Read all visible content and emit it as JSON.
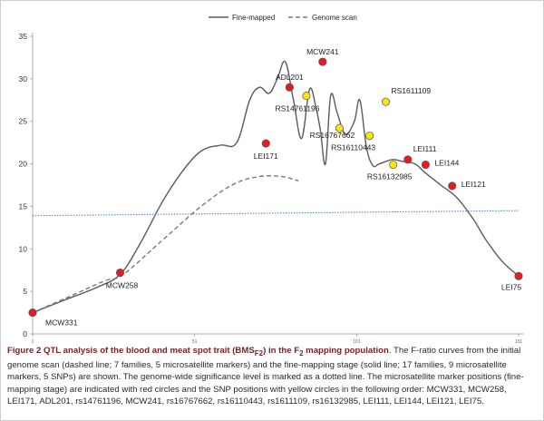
{
  "chart_data": {
    "type": "line",
    "title": "",
    "xlabel": "",
    "ylabel": "",
    "ylim": [
      0,
      35
    ],
    "yticks": [
      0,
      5,
      10,
      15,
      20,
      25,
      30,
      35
    ],
    "xlim": [
      0,
      150
    ],
    "xticks": [
      {
        "value": 0,
        "label": "1"
      },
      {
        "value": 50,
        "label": "51"
      },
      {
        "value": 100,
        "label": "101"
      },
      {
        "value": 150,
        "label": "151"
      }
    ],
    "legend": {
      "placement": "top-center",
      "entries": [
        "Fine-mapped",
        "Genome scan"
      ]
    },
    "series": [
      {
        "name": "Fine-mapped",
        "style": "solid",
        "color": "#5b5b5b",
        "x": [
          0,
          10,
          20,
          27,
          33,
          40,
          46,
          52,
          58,
          63,
          67,
          70,
          73,
          75.5,
          78,
          80.5,
          83,
          85.5,
          87.5,
          88.8,
          90.4,
          92,
          94,
          96.5,
          99.3,
          101,
          103,
          105,
          107,
          111,
          114,
          118,
          121,
          126,
          131,
          136,
          140,
          145,
          150
        ],
        "y": [
          2.5,
          4.0,
          5.5,
          7.0,
          10.5,
          15.5,
          19.0,
          21.5,
          22.2,
          22.5,
          27.5,
          29.0,
          28.3,
          30.0,
          32.0,
          27.5,
          23.0,
          28.8,
          26.5,
          24.0,
          20.0,
          28.0,
          26.0,
          23.5,
          25.0,
          27.5,
          22.0,
          19.8,
          20.0,
          20.5,
          20.3,
          20.0,
          19.0,
          17.5,
          16.0,
          13.5,
          11.0,
          8.5,
          6.8
        ]
      },
      {
        "name": "Genome scan",
        "style": "dashed",
        "color": "#7a7a7a",
        "x": [
          0,
          12,
          22,
          28,
          40,
          52,
          62,
          70,
          77,
          82
        ],
        "y": [
          2.5,
          4.5,
          6.2,
          7.0,
          11.0,
          15.0,
          17.6,
          18.5,
          18.5,
          18.0
        ]
      },
      {
        "name": "Significance level",
        "style": "dotted",
        "color": "#5b86c8",
        "x": [
          0,
          150
        ],
        "y": [
          13.9,
          14.5
        ]
      }
    ],
    "markers": [
      {
        "label": "MCW331",
        "x": 0,
        "y": 2.5,
        "kind": "microsatellite",
        "color": "#e31b23",
        "label_pos": "below-right"
      },
      {
        "label": "MCW258",
        "x": 27,
        "y": 7.2,
        "kind": "microsatellite",
        "color": "#e31b23",
        "label_pos": "below"
      },
      {
        "label": "LEI171",
        "x": 72,
        "y": 22.4,
        "kind": "microsatellite",
        "color": "#e31b23",
        "label_pos": "below"
      },
      {
        "label": "ADL201",
        "x": 79.3,
        "y": 29.0,
        "kind": "microsatellite",
        "color": "#e31b23",
        "label_pos": "above"
      },
      {
        "label": "RS14761196",
        "x": 84.5,
        "y": 28.0,
        "kind": "SNP",
        "color": "#f7e31b",
        "label_pos": "below"
      },
      {
        "label": "MCW241",
        "x": 89.5,
        "y": 32.0,
        "kind": "microsatellite",
        "color": "#e31b23",
        "label_pos": "above"
      },
      {
        "label": "RS16767662",
        "x": 94.7,
        "y": 24.2,
        "kind": "SNP",
        "color": "#f7e31b",
        "label_pos": "below"
      },
      {
        "label": "RS16110443",
        "x": 104,
        "y": 23.3,
        "kind": "SNP",
        "color": "#f7e31b",
        "label_pos": "below"
      },
      {
        "label": "RS1611109",
        "x": 109,
        "y": 27.3,
        "kind": "SNP",
        "color": "#f7e31b",
        "label_pos": "above-right"
      },
      {
        "label": "RS16132985",
        "x": 111.3,
        "y": 19.9,
        "kind": "SNP",
        "color": "#f7e31b",
        "label_pos": "below"
      },
      {
        "label": "LEI111",
        "x": 115.8,
        "y": 20.5,
        "kind": "microsatellite",
        "color": "#e31b23",
        "label_pos": "above-right"
      },
      {
        "label": "LEI144",
        "x": 121.3,
        "y": 19.9,
        "kind": "microsatellite",
        "color": "#e31b23",
        "label_pos": "right"
      },
      {
        "label": "LEI121",
        "x": 129.5,
        "y": 17.4,
        "kind": "microsatellite",
        "color": "#e31b23",
        "label_pos": "right"
      },
      {
        "label": "LEI75",
        "x": 150,
        "y": 6.8,
        "kind": "microsatellite",
        "color": "#e31b23",
        "label_pos": "below"
      }
    ]
  },
  "caption": {
    "title_a": "Figure 2 QTL analysis of the blood and meat spot trait (BMS",
    "title_sub": "F2",
    "title_b": ") in the F",
    "title_sub2": "2",
    "title_c": " mapping population",
    "body": ". The F-ratio curves from the initial genome scan (dashed line; 7 families, 5 microsatellite markers) and the fine-mapping stage (solid line; 17 families, 9 microsatellite markers, 5 SNPs) are shown. The genome-wide significance level is marked as a dotted line. The microsatellite marker positions (fine-mapping stage) are indicated with red circles and the SNP positions with yellow circles in the following order: MCW331, MCW258, LEI171, ADL201, rs14761196, MCW241, rs16767662, rs16110443, rs1611109, rs16132985, LEI111, LEI144, LEI121, LEI75."
  }
}
